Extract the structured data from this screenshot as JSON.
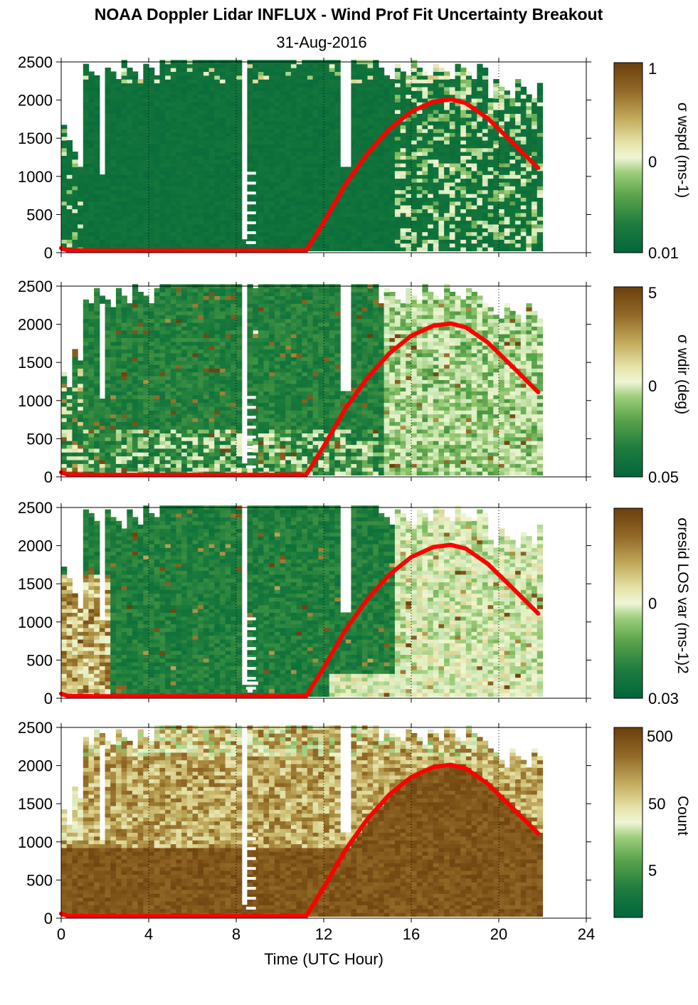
{
  "title": "NOAA Doppler Lidar INFLUX - Wind Prof Fit Uncertainty Breakout",
  "subtitle": "31-Aug-2016",
  "chart_data": [
    {
      "type": "heatmap",
      "name": "σ wspd",
      "colorbar_label": "σ wspd (ms-1)",
      "colorbar_scale": "log",
      "colorbar_ticks": [
        "1",
        "0.1",
        "0.01"
      ],
      "colorbar_ticks_shown": [
        "1",
        "0",
        "0.01"
      ],
      "field_character": "mostly low (dark green) with scattered higher values after 15 UTC",
      "xlim": [
        0,
        24
      ],
      "ylim": [
        0,
        2500
      ]
    },
    {
      "type": "heatmap",
      "name": "σ wdir",
      "colorbar_label": "σ wdir (deg)",
      "colorbar_scale": "log",
      "colorbar_ticks_shown": [
        "5",
        "0",
        "0.05"
      ],
      "field_character": "low values with increased values near surface and after 15 UTC",
      "xlim": [
        0,
        24
      ],
      "ylim": [
        0,
        2500
      ]
    },
    {
      "type": "heatmap",
      "name": "σresid LOS var",
      "colorbar_label": "σresid LOS var (ms-1)2",
      "colorbar_scale": "log",
      "colorbar_ticks_shown": [
        "0",
        "0.03"
      ],
      "field_character": "high values 0-2 UTC below 1500 m, higher values 15-22 UTC",
      "xlim": [
        0,
        24
      ],
      "ylim": [
        0,
        2500
      ]
    },
    {
      "type": "heatmap",
      "name": "Count",
      "colorbar_label": "Count",
      "colorbar_scale": "log",
      "colorbar_ticks_shown": [
        "500",
        "50",
        "5"
      ],
      "field_character": "high counts (brown) below ~1000 m, lower aloft",
      "xlim": [
        0,
        24
      ],
      "ylim": [
        0,
        2500
      ]
    }
  ],
  "axes": {
    "xlabel": "Time (UTC Hour)",
    "xticks": [
      0,
      4,
      8,
      12,
      16,
      20,
      24
    ],
    "xtick_labels": [
      "0",
      "4",
      "8",
      "12",
      "16",
      "20",
      "24"
    ],
    "yticks": [
      0,
      500,
      1000,
      1500,
      2000,
      2500
    ],
    "ytick_labels": [
      "0",
      "500",
      "1000",
      "1500",
      "2000",
      "2500"
    ],
    "dotted_vlines": [
      4,
      8,
      12,
      16,
      20,
      24
    ]
  },
  "overlay_line": {
    "color": "#ff0000",
    "description": "mixing/boundary layer height estimate",
    "x": [
      0,
      0.3,
      2,
      4,
      6,
      8,
      10,
      11.2,
      12,
      13,
      14,
      15,
      16,
      17,
      17.8,
      18.5,
      19.5,
      20.5,
      21.8
    ],
    "y": [
      60,
      30,
      25,
      25,
      25,
      25,
      25,
      30,
      400,
      900,
      1300,
      1620,
      1850,
      1980,
      2010,
      1960,
      1760,
      1480,
      1110
    ]
  },
  "gaps": [
    {
      "x0": 8.1,
      "x1": 8.45,
      "y0": 150,
      "y1": 2500
    },
    {
      "x0": 12.65,
      "x1": 13.0,
      "y0": 1100,
      "y1": 2500
    },
    {
      "x0": 1.6,
      "x1": 1.9,
      "y0": 1000,
      "y1": 2250
    }
  ],
  "colors": {
    "colormap": [
      "#00663a",
      "#1a7a3c",
      "#4e9b45",
      "#8ec36a",
      "#cfe8b8",
      "#eff5cf",
      "#d9cf8a",
      "#b59c4e",
      "#8e6524",
      "#6b3e0c"
    ],
    "line": "#ff0000"
  }
}
